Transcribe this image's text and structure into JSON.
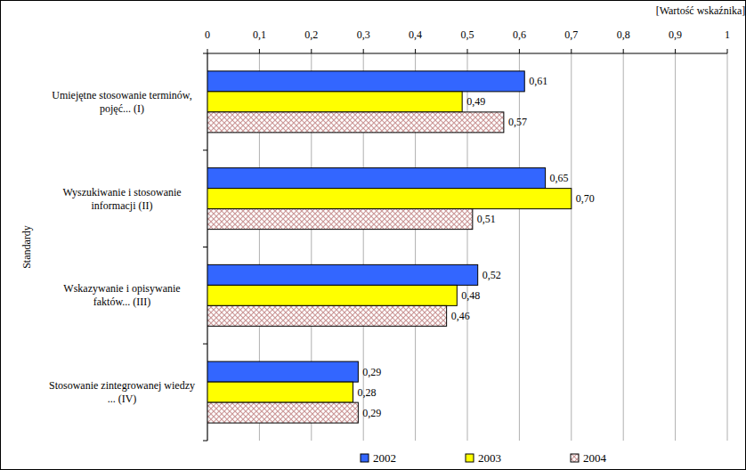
{
  "chart_data": {
    "type": "bar",
    "orientation": "horizontal",
    "x_label": "[Wartość wskaźnika]",
    "y_label": "Standardy",
    "categories": [
      "Umiejętne stosowanie terminów, pojęć... (I)",
      "Wyszukiwanie i stosowanie informacji (II)",
      "Wskazywanie i opisywanie faktów... (III)",
      "Stosowanie zintegrowanej wiedzy ... (IV)"
    ],
    "series": [
      {
        "name": "2002",
        "color": "#3366ff",
        "values": [
          0.61,
          0.65,
          0.52,
          0.29
        ],
        "value_labels": [
          "0,61",
          "0,65",
          "0,52",
          "0,29"
        ]
      },
      {
        "name": "2003",
        "color": "#ffff00",
        "values": [
          0.49,
          0.7,
          0.48,
          0.28
        ],
        "value_labels": [
          "0,49",
          "0,70",
          "0,48",
          "0,28"
        ]
      },
      {
        "name": "2004",
        "color": "#cc9999",
        "values": [
          0.57,
          0.51,
          0.46,
          0.29
        ],
        "value_labels": [
          "0,57",
          "0,51",
          "0,46",
          "0,29"
        ]
      }
    ],
    "xlim": [
      0,
      1
    ],
    "xticks": [
      0,
      {
        "value": 0.1,
        "label": "0,1"
      },
      {
        "value": 0.2,
        "label": "0,2"
      },
      {
        "value": 0.3,
        "label": "0,3"
      },
      {
        "value": 0.4,
        "label": "0,4"
      },
      {
        "value": 0.5,
        "label": "0,5"
      },
      {
        "value": 0.6,
        "label": "0,6"
      },
      {
        "value": 0.7,
        "label": "0,7"
      },
      {
        "value": 0.8,
        "label": "0,8"
      },
      {
        "value": 0.9,
        "label": "0,9"
      },
      1
    ],
    "grid": true,
    "data_labels": true,
    "legend": "bottom"
  }
}
